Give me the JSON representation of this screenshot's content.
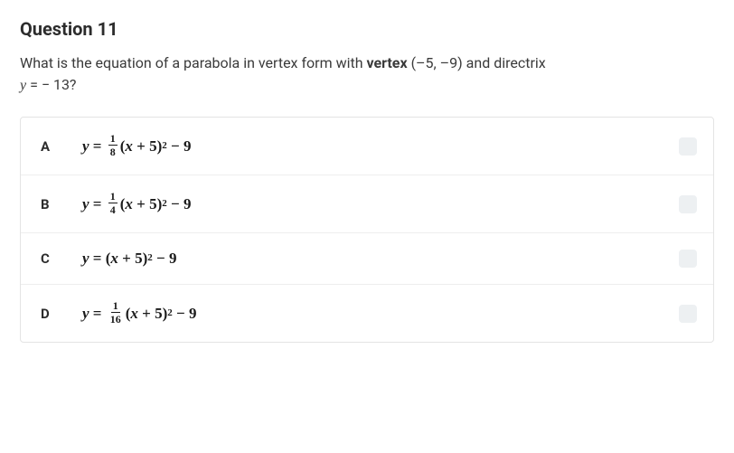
{
  "question": {
    "title": "Question 11",
    "prompt_pre": "What is the equation of a parabola in vertex form with ",
    "prompt_bold": "vertex",
    "prompt_mid": " (–5, –9) and directrix",
    "prompt_line2_pre": "y",
    "prompt_line2_post": " = − 13?"
  },
  "options": {
    "a": {
      "letter": "A",
      "numerator": "1",
      "denominator": "8"
    },
    "b": {
      "letter": "B",
      "numerator": "1",
      "denominator": "4"
    },
    "c": {
      "letter": "C"
    },
    "d": {
      "letter": "D",
      "numerator": "1",
      "denominator": "16"
    }
  },
  "colors": {
    "border": "#e4e4e4",
    "checkbox_bg": "#edf0f2",
    "text": "#2c2c2c"
  }
}
